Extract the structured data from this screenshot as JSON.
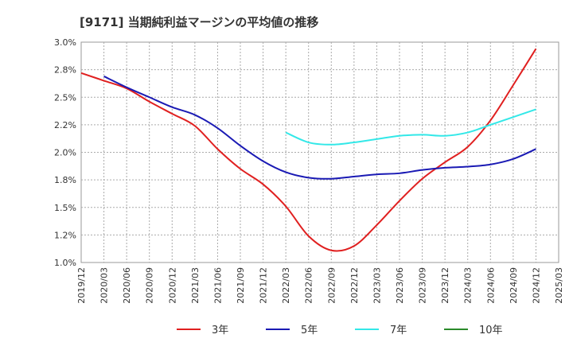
{
  "chart_data": {
    "type": "line",
    "title": "[9171]  当期純利益マージンの平均値の推移",
    "xlabel": "",
    "ylabel": "",
    "ylim": [
      1.0,
      3.0
    ],
    "yticks": [
      "1.0%",
      "1.2%",
      "1.5%",
      "1.8%",
      "2.0%",
      "2.2%",
      "2.5%",
      "2.8%",
      "3.0%"
    ],
    "x": [
      "2019/12",
      "2020/03",
      "2020/06",
      "2020/09",
      "2020/12",
      "2021/03",
      "2021/06",
      "2021/09",
      "2021/12",
      "2022/03",
      "2022/06",
      "2022/09",
      "2022/12",
      "2023/03",
      "2023/06",
      "2023/09",
      "2023/12",
      "2024/03",
      "2024/06",
      "2024/09",
      "2024/12",
      "2025/03"
    ],
    "grid": true,
    "legend_position": "bottom",
    "series": [
      {
        "name": "3年",
        "color": "#e02020",
        "values": [
          2.72,
          2.65,
          2.58,
          2.46,
          2.35,
          2.24,
          2.03,
          1.85,
          1.71,
          1.51,
          1.24,
          1.11,
          1.15,
          1.34,
          1.56,
          1.76,
          1.91,
          2.05,
          2.29,
          2.61,
          2.94,
          null
        ]
      },
      {
        "name": "5年",
        "color": "#1a1ab4",
        "values": [
          null,
          2.69,
          2.59,
          2.5,
          2.41,
          2.34,
          2.22,
          2.06,
          1.92,
          1.82,
          1.77,
          1.76,
          1.78,
          1.8,
          1.81,
          1.84,
          1.86,
          1.87,
          1.89,
          1.94,
          2.03,
          null
        ]
      },
      {
        "name": "7年",
        "color": "#33e8e8",
        "values": [
          null,
          null,
          null,
          null,
          null,
          null,
          null,
          null,
          null,
          2.18,
          2.09,
          2.07,
          2.09,
          2.12,
          2.15,
          2.16,
          2.15,
          2.18,
          2.25,
          2.32,
          2.39,
          null
        ]
      },
      {
        "name": "10年",
        "color": "#2a8a2a",
        "values": [
          null,
          null,
          null,
          null,
          null,
          null,
          null,
          null,
          null,
          null,
          null,
          null,
          null,
          null,
          null,
          null,
          null,
          null,
          null,
          null,
          null,
          null
        ]
      }
    ]
  }
}
